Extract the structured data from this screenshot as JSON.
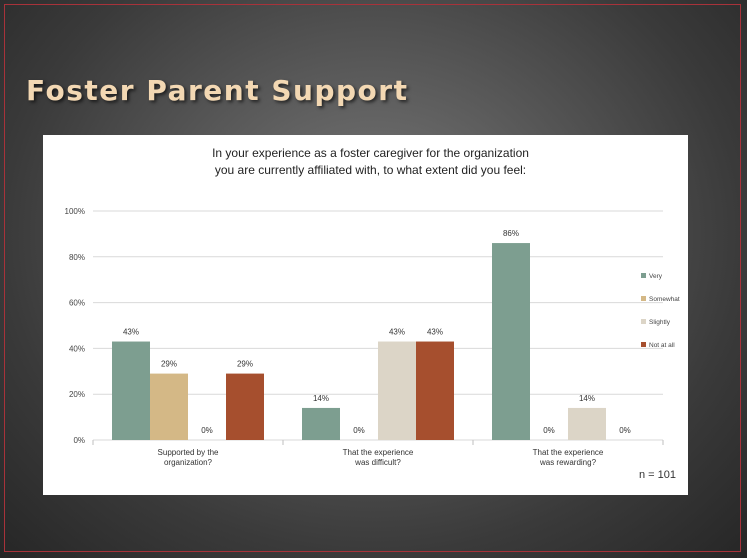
{
  "slide": {
    "title": "Foster Parent Support",
    "sample_note": "n = 101"
  },
  "colors": {
    "background": "#4a4a4a",
    "frame": "#a8323a",
    "title": "#f3d8b3",
    "panel": "#ffffff"
  },
  "chart_data": {
    "type": "bar",
    "title_lines": [
      "In your experience as a foster caregiver for the organization",
      "you are currently affiliated with, to what extent did you feel:"
    ],
    "categories": [
      "Supported by the organization?",
      "That the experience was difficult?",
      "That the experience was rewarding?"
    ],
    "category_label_lines": [
      [
        "Supported by the",
        "organization?"
      ],
      [
        "That the experience",
        "was difficult?"
      ],
      [
        "That the experience",
        "was rewarding?"
      ]
    ],
    "series": [
      {
        "name": "Very",
        "color": "#7d9e90",
        "values": [
          43,
          14,
          86
        ]
      },
      {
        "name": "Somewhat",
        "color": "#d4b886",
        "values": [
          29,
          0,
          0
        ]
      },
      {
        "name": "Slightly",
        "color": "#dcd5c7",
        "values": [
          0,
          43,
          14
        ]
      },
      {
        "name": "Not at all",
        "color": "#a64f2e",
        "values": [
          29,
          43,
          0
        ]
      }
    ],
    "value_suffix": "%",
    "ylim": [
      0,
      100
    ],
    "yticks": [
      0,
      20,
      40,
      60,
      80,
      100
    ],
    "ytick_labels": [
      "0%",
      "20%",
      "40%",
      "60%",
      "80%",
      "100%"
    ],
    "grid": true,
    "legend_position": "right"
  }
}
